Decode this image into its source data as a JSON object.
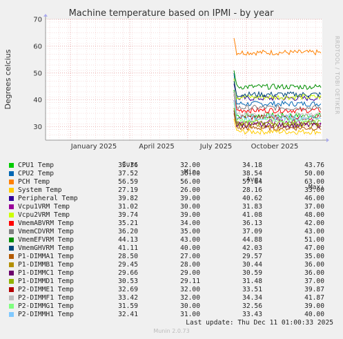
{
  "chart_data": {
    "type": "line",
    "title": "Machine temperature based on IPMI - by year",
    "ylabel": "Degrees celcius",
    "side_text": "RRDTOOL / TOBI OETIKER",
    "ylim": [
      25,
      70
    ],
    "yticks": [
      30,
      40,
      50,
      60,
      70
    ],
    "xticks": [
      "January 2025",
      "April 2025",
      "July 2025",
      "October 2025"
    ],
    "grid": true,
    "columns": [
      "Cur:",
      "Min:",
      "Avg:",
      "Max:"
    ],
    "series": [
      {
        "name": "CPU1 Temp",
        "color": "#00cc00",
        "cur": "33.36",
        "min": "32.00",
        "avg": "34.18",
        "max": "43.76"
      },
      {
        "name": "CPU2 Temp",
        "color": "#0066b3",
        "cur": "37.52",
        "min": "36.00",
        "avg": "38.54",
        "max": "50.00"
      },
      {
        "name": "PCH Temp",
        "color": "#ff8000",
        "cur": "56.59",
        "min": "56.00",
        "avg": "57.64",
        "max": "63.00"
      },
      {
        "name": "System Temp",
        "color": "#ffcc00",
        "cur": "27.19",
        "min": "26.00",
        "avg": "28.16",
        "max": "33.00"
      },
      {
        "name": "Peripheral Temp",
        "color": "#330099",
        "cur": "39.82",
        "min": "39.00",
        "avg": "40.62",
        "max": "46.00"
      },
      {
        "name": "Vcpu1VRM Temp",
        "color": "#990099",
        "cur": "31.02",
        "min": "30.00",
        "avg": "31.83",
        "max": "37.00"
      },
      {
        "name": "Vcpu2VRM Temp",
        "color": "#ccff00",
        "cur": "39.74",
        "min": "39.00",
        "avg": "41.08",
        "max": "48.00"
      },
      {
        "name": "VmemABVRM Temp",
        "color": "#ff0000",
        "cur": "35.21",
        "min": "34.00",
        "avg": "36.13",
        "max": "42.00"
      },
      {
        "name": "VmemCDVRM Temp",
        "color": "#808080",
        "cur": "36.20",
        "min": "35.00",
        "avg": "37.09",
        "max": "43.00"
      },
      {
        "name": "VmemEFVRM Temp",
        "color": "#008f00",
        "cur": "44.13",
        "min": "43.00",
        "avg": "44.88",
        "max": "51.00"
      },
      {
        "name": "VmemGHVRM Temp",
        "color": "#00487d",
        "cur": "41.11",
        "min": "40.00",
        "avg": "42.03",
        "max": "47.00"
      },
      {
        "name": "P1-DIMMA1 Temp",
        "color": "#b35a00",
        "cur": "28.50",
        "min": "27.00",
        "avg": "29.57",
        "max": "35.00"
      },
      {
        "name": "P1-DIMMB1 Temp",
        "color": "#b38f00",
        "cur": "29.45",
        "min": "28.00",
        "avg": "30.44",
        "max": "36.00"
      },
      {
        "name": "P1-DIMMC1 Temp",
        "color": "#6b006b",
        "cur": "29.66",
        "min": "29.00",
        "avg": "30.59",
        "max": "36.00"
      },
      {
        "name": "P1-DIMMD1 Temp",
        "color": "#8fb300",
        "cur": "30.53",
        "min": "29.11",
        "avg": "31.48",
        "max": "37.00"
      },
      {
        "name": "P2-DIMME1 Temp",
        "color": "#b30000",
        "cur": "32.69",
        "min": "32.00",
        "avg": "33.51",
        "max": "39.87"
      },
      {
        "name": "P2-DIMMF1 Temp",
        "color": "#bebebe",
        "cur": "33.42",
        "min": "32.00",
        "avg": "34.34",
        "max": "41.87"
      },
      {
        "name": "P2-DIMMG1 Temp",
        "color": "#80ff80",
        "cur": "31.59",
        "min": "30.00",
        "avg": "32.56",
        "max": "39.00"
      },
      {
        "name": "P2-DIMMH1 Temp",
        "color": "#80c9ff",
        "cur": "32.41",
        "min": "31.00",
        "avg": "33.43",
        "max": "40.00"
      }
    ]
  },
  "footer": {
    "last_update": "Last update: Thu Dec 11 01:00:33 2025",
    "version": "Munin 2.0.73"
  }
}
